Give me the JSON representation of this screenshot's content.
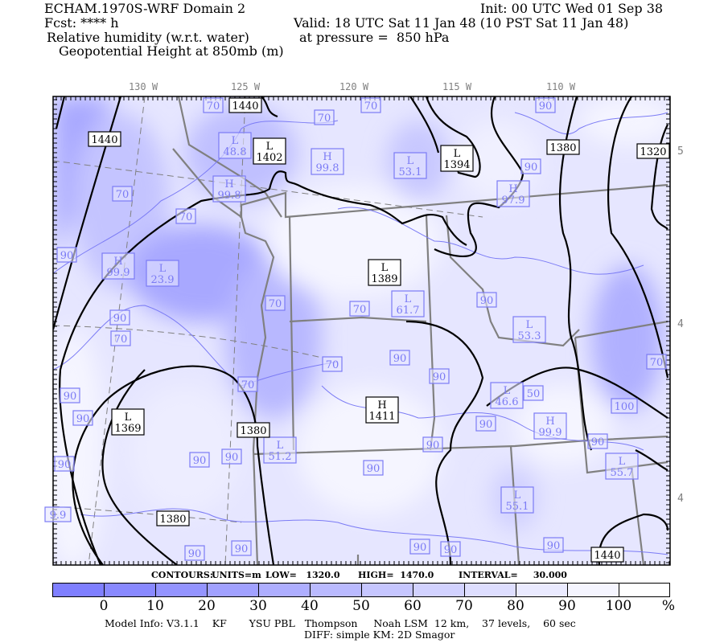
{
  "header": {
    "model_title": "ECHAM.1970S-WRF Domain 2",
    "init": "Init: 00 UTC Wed 01 Sep 38",
    "fcst": "Fcst: **** h",
    "valid": "Valid: 18 UTC Sat 11 Jan 48 (10 PST Sat 11 Jan 48)",
    "field1": "Relative humidity (w.r.t. water)",
    "pressure": "at pressure =  850 hPa",
    "field2": "Geopotential Height at 850mb (m)"
  },
  "map": {
    "longitude_labels": [
      "130 W",
      "125 W",
      "120 W",
      "115 W",
      "110 W"
    ],
    "latitude_labels": [
      "5",
      "4",
      "4"
    ],
    "height_contour_labels": [
      "1440",
      "1440",
      "L\n1402",
      "L\n1394",
      "1380",
      "1320",
      "L\n1389",
      "L\n1369",
      "1380",
      "1380",
      "H\n1411",
      "1440"
    ],
    "rh_contour_labels": [
      "70",
      "70",
      "70",
      "90",
      "L\n48.8",
      "H\n99.8",
      "L\n53.1",
      "90",
      "H\n99.8",
      "H\n97.9",
      "70",
      "70",
      "90",
      "H\n99.9",
      "L\n23.9",
      "70",
      "70",
      "L\n61.7",
      "90",
      "L\n53.3",
      "90",
      "70",
      "70",
      "90",
      "90",
      "L\n46.6",
      "50",
      "90",
      "90",
      "70",
      "90",
      "L\n51.2",
      "90",
      "90",
      "90",
      "H\n99.9",
      "90",
      "70",
      "100",
      "L\n55.7",
      "90",
      "90",
      "9.9",
      "L\n55.1",
      "90",
      "90",
      "90",
      "90",
      "90"
    ],
    "colors": {
      "contour": "#000000",
      "rh_contour": "#7b7bf5",
      "borders": "#808080",
      "dark_fill": "#9a9aff",
      "light_fill": "#f5f5ff"
    }
  },
  "contours_info": {
    "label": "CONTOURS:",
    "units": "UNITS=m",
    "low": "LOW=   1320.0",
    "high": "HIGH=  1470.0",
    "interval": "INTERVAL=     30.000"
  },
  "colorbar": {
    "colors": [
      "#7f7fff",
      "#8989ff",
      "#9494ff",
      "#a1a1ff",
      "#aeaeff",
      "#babaff",
      "#c6c6ff",
      "#d2d2ff",
      "#dedeff",
      "#eaeaff",
      "#f5f5ff",
      "#ffffff"
    ],
    "ticks": [
      "0",
      "10",
      "20",
      "30",
      "40",
      "50",
      "60",
      "70",
      "80",
      "90",
      "100"
    ],
    "unit": "%"
  },
  "footer": {
    "model_info": "Model Info: V3.1.1    KF       YSU PBL   Thompson     Noah LSM  12 km,    37 levels,    60 sec",
    "diff": "DIFF: simple KM: 2D Smagor"
  }
}
